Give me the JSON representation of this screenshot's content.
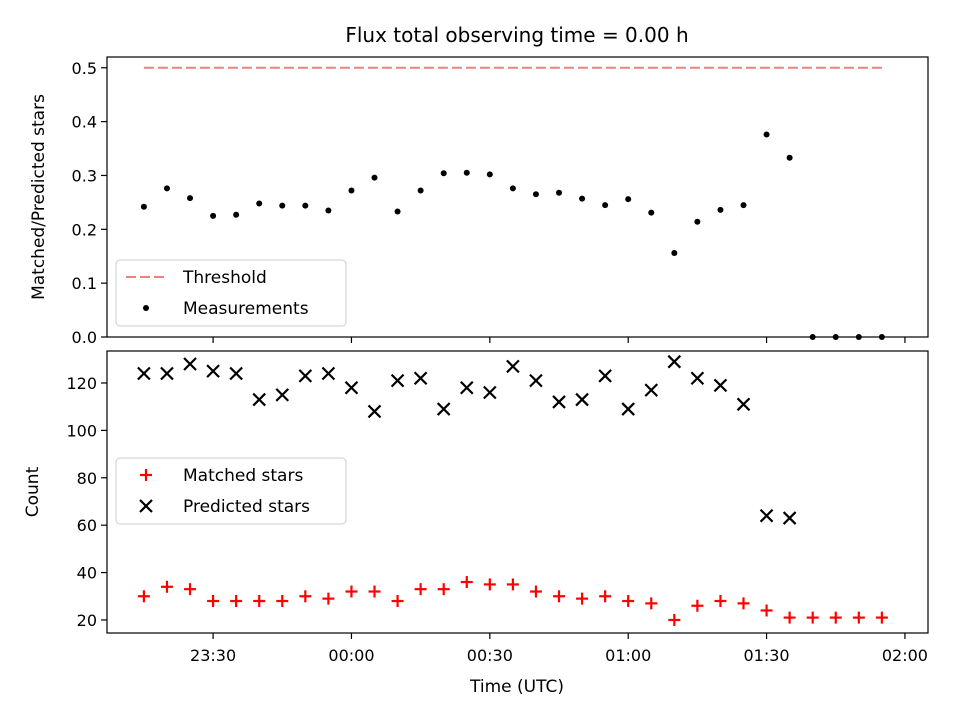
{
  "title": "Flux total observing time = 0.00 h",
  "xlabel": "Time (UTC)",
  "x_tick_labels": [
    "23:30",
    "00:00",
    "00:30",
    "01:00",
    "01:30",
    "02:00"
  ],
  "colors": {
    "threshold": "#f08080",
    "measurements": "#000000",
    "matched": "#ff0000",
    "predicted": "#000000"
  },
  "chart_data": [
    {
      "type": "scatter",
      "ylabel": "Matched/Predicted stars",
      "ylim": [
        0,
        0.52
      ],
      "yticks": [
        "0.0",
        "0.1",
        "0.2",
        "0.3",
        "0.4",
        "0.5"
      ],
      "xlim": [
        "23:07",
        "02:05"
      ],
      "legend_placement": "lower-left",
      "series": [
        {
          "name": "Threshold",
          "style": "dashed-line",
          "x": [
            "23:15",
            "01:55"
          ],
          "values": [
            0.5,
            0.5
          ]
        },
        {
          "name": "Measurements",
          "style": "dot",
          "x": [
            "23:15",
            "23:20",
            "23:25",
            "23:30",
            "23:35",
            "23:40",
            "23:45",
            "23:50",
            "23:55",
            "00:00",
            "00:05",
            "00:10",
            "00:15",
            "00:20",
            "00:25",
            "00:30",
            "00:35",
            "00:40",
            "00:45",
            "00:50",
            "00:55",
            "01:00",
            "01:05",
            "01:10",
            "01:15",
            "01:20",
            "01:25",
            "01:30",
            "01:35",
            "01:40",
            "01:45",
            "01:50",
            "01:55"
          ],
          "values": [
            0.242,
            0.276,
            0.258,
            0.225,
            0.227,
            0.248,
            0.244,
            0.244,
            0.235,
            0.272,
            0.296,
            0.233,
            0.272,
            0.304,
            0.305,
            0.302,
            0.276,
            0.265,
            0.268,
            0.257,
            0.245,
            0.256,
            0.231,
            0.156,
            0.214,
            0.236,
            0.245,
            0.376,
            0.333,
            0.0,
            0.0,
            0.0,
            0.0
          ]
        }
      ]
    },
    {
      "type": "scatter",
      "ylabel": "Count",
      "ylim": [
        14.5,
        133.5
      ],
      "yticks": [
        "20",
        "40",
        "60",
        "80",
        "100",
        "120"
      ],
      "xlim": [
        "23:07",
        "02:05"
      ],
      "legend_placement": "center-left",
      "series": [
        {
          "name": "Matched stars",
          "style": "plus",
          "x": [
            "23:15",
            "23:20",
            "23:25",
            "23:30",
            "23:35",
            "23:40",
            "23:45",
            "23:50",
            "23:55",
            "00:00",
            "00:05",
            "00:10",
            "00:15",
            "00:20",
            "00:25",
            "00:30",
            "00:35",
            "00:40",
            "00:45",
            "00:50",
            "00:55",
            "01:00",
            "01:05",
            "01:10",
            "01:15",
            "01:20",
            "01:25",
            "01:30",
            "01:35",
            "01:40",
            "01:45",
            "01:50",
            "01:55"
          ],
          "values": [
            30,
            34,
            33,
            28,
            28,
            28,
            28,
            30,
            29,
            32,
            32,
            28,
            33,
            33,
            36,
            35,
            35,
            32,
            30,
            29,
            30,
            28,
            27,
            20,
            26,
            28,
            27,
            24,
            21,
            21,
            21,
            21,
            21
          ]
        },
        {
          "name": "Predicted stars",
          "style": "x",
          "x": [
            "23:15",
            "23:20",
            "23:25",
            "23:30",
            "23:35",
            "23:40",
            "23:45",
            "23:50",
            "23:55",
            "00:00",
            "00:05",
            "00:10",
            "00:15",
            "00:20",
            "00:25",
            "00:30",
            "00:35",
            "00:40",
            "00:45",
            "00:50",
            "00:55",
            "01:00",
            "01:05",
            "01:10",
            "01:15",
            "01:20",
            "01:25",
            "01:30",
            "01:35"
          ],
          "values": [
            124,
            124,
            128,
            125,
            124,
            113,
            115,
            123,
            124,
            118,
            108,
            121,
            122,
            109,
            118,
            116,
            127,
            121,
            112,
            113,
            123,
            109,
            117,
            129,
            122,
            119,
            111,
            64,
            63
          ]
        }
      ]
    }
  ]
}
